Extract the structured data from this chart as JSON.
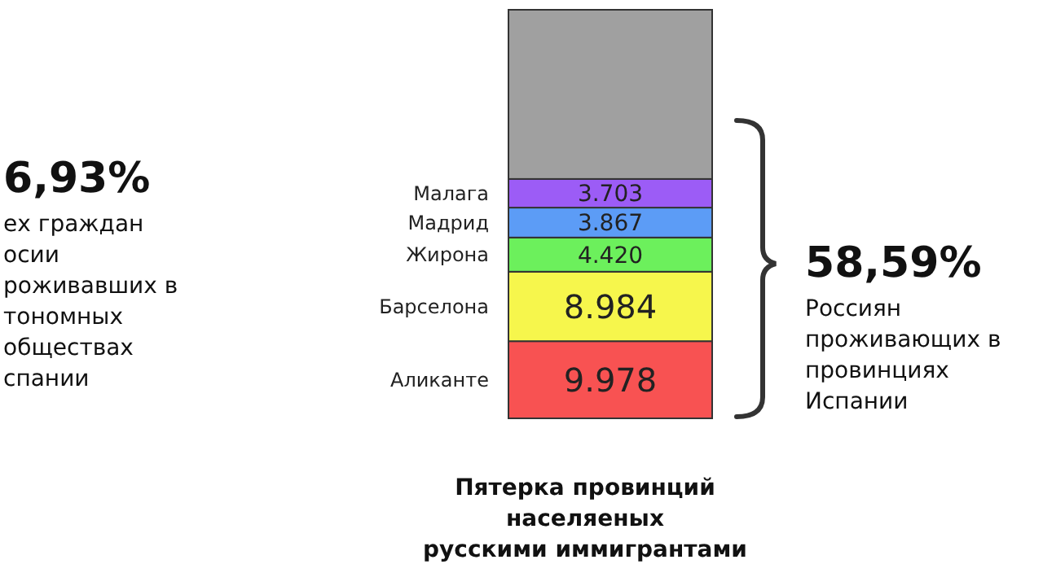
{
  "chart_data": {
    "type": "bar",
    "stacked": true,
    "title": "Пятерка провинций\nнаселяеных\nрусскими иммигрантами",
    "categories": [
      null
    ],
    "ylim": [
      0,
      52830
    ],
    "tick_labels": false,
    "grid": false,
    "legend": false,
    "series": [
      {
        "name": "Аликанте",
        "color": "#f85252",
        "values": [
          9978
        ],
        "value_labels": [
          "9.978"
        ]
      },
      {
        "name": "Барселона",
        "color": "#f6f64c",
        "values": [
          8984
        ],
        "value_labels": [
          "8.984"
        ]
      },
      {
        "name": "Жирона",
        "color": "#6cf05c",
        "values": [
          4420
        ],
        "value_labels": [
          "4.420"
        ]
      },
      {
        "name": "Мадрид",
        "color": "#5c9cf6",
        "values": [
          3867
        ],
        "value_labels": [
          "3.867"
        ]
      },
      {
        "name": "Малага",
        "color": "#9c5cf6",
        "values": [
          3703
        ],
        "value_labels": [
          "3.703"
        ]
      },
      {
        "color": "#a0a0a0",
        "values": [
          21878
        ],
        "value_labels": [
          null
        ]
      }
    ],
    "annotations": [
      "6,93%\nех граждан\nосии\nроживавших в\nтономных\nобществах\nспании",
      "58,59%\nРоссиян\nпроживающих в\nпровинциях\nИспании"
    ]
  }
}
